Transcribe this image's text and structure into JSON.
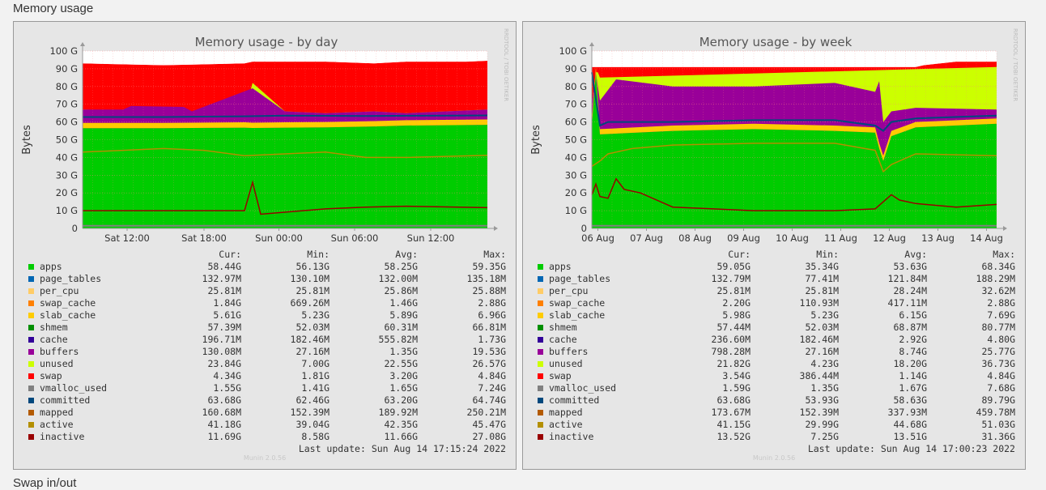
{
  "page": {
    "section_title": "Memory usage",
    "next_section_title": "Swap in/out"
  },
  "colors": {
    "apps": "#00cc00",
    "page_tables": "#0066b3",
    "per_cpu": "#ffcc66",
    "swap_cache": "#ff8000",
    "slab_cache": "#ffcc00",
    "shmem": "#008f00",
    "cache": "#330099",
    "buffers": "#990099",
    "unused": "#ccff00",
    "swap": "#ff0000",
    "vmalloc_used": "#808080",
    "committed": "#00487d",
    "mapped": "#b35a00",
    "active": "#b38f00",
    "inactive": "#990000"
  },
  "legend_header": {
    "cur": "Cur:",
    "min": "Min:",
    "avg": "Avg:",
    "max": "Max:"
  },
  "graphs": [
    {
      "title": "Memory usage - by day",
      "side_label": "RRDTOOL / TOBI OETIKER",
      "footer": "Munin 2.0.56",
      "last_update": "Last update: Sun Aug 14 17:15:24 2022",
      "chart_data": {
        "type": "area",
        "ylabel": "Bytes",
        "y_ticks": [
          "0",
          "10 G",
          "20 G",
          "30 G",
          "40 G",
          "50 G",
          "60 G",
          "70 G",
          "80 G",
          "90 G",
          "100 G"
        ],
        "ylim": [
          0,
          100
        ],
        "x_ticks": [
          "Sat 12:00",
          "Sat 18:00",
          "Sun 00:00",
          "Sun 06:00",
          "Sun 12:00"
        ],
        "x_tick_pos": [
          0.11,
          0.3,
          0.485,
          0.672,
          0.86
        ],
        "series": {
          "apps": {
            "x": [
              0,
              0.2,
              0.4,
              0.42,
              0.5,
              0.6,
              0.72,
              0.8,
              1
            ],
            "y": [
              56.5,
              56.5,
              56.8,
              56.6,
              56.8,
              57,
              57.5,
              58,
              58.4
            ]
          },
          "unused": {
            "x": [
              0,
              0.2,
              0.4,
              0.42,
              0.5,
              0.6,
              0.72,
              0.8,
              1
            ],
            "y": [
              67,
              66,
              66,
              82,
              66,
              65,
              66,
              65,
              67
            ]
          },
          "buffers": {
            "x": [
              0,
              0.1,
              0.12,
              0.25,
              0.27,
              0.42,
              0.5,
              0.6,
              0.72,
              0.8,
              1
            ],
            "y": [
              67,
              67,
              69,
              68.5,
              66,
              79,
              66,
              65,
              66,
              65,
              67
            ]
          },
          "swap": {
            "x": [
              0,
              0.2,
              0.4,
              0.42,
              0.6,
              0.72,
              0.8,
              0.95,
              1
            ],
            "y": [
              93,
              92,
              93,
              94,
              94,
              93,
              94,
              94,
              94.5
            ]
          },
          "committed": {
            "x": [
              0,
              0.2,
              0.4,
              0.5,
              0.7,
              0.9,
              1
            ],
            "y": [
              62.8,
              62.8,
              63.2,
              63.6,
              63.4,
              63.6,
              63.7
            ]
          },
          "active": {
            "x": [
              0,
              0.1,
              0.2,
              0.3,
              0.4,
              0.5,
              0.6,
              0.7,
              0.75,
              0.8,
              1
            ],
            "y": [
              43,
              44,
              45,
              44,
              41,
              42,
              43,
              40,
              40,
              40,
              41.2
            ]
          },
          "inactive": {
            "x": [
              0,
              0.2,
              0.4,
              0.42,
              0.44,
              0.6,
              0.7,
              0.8,
              1
            ],
            "y": [
              10,
              10,
              10,
              26,
              8,
              11,
              12,
              12.5,
              11.7
            ]
          }
        }
      },
      "legend": [
        {
          "name": "apps",
          "cur": "58.44G",
          "min": "56.13G",
          "avg": "58.25G",
          "max": "59.35G"
        },
        {
          "name": "page_tables",
          "cur": "132.97M",
          "min": "130.10M",
          "avg": "132.00M",
          "max": "135.18M"
        },
        {
          "name": "per_cpu",
          "cur": "25.81M",
          "min": "25.81M",
          "avg": "25.86M",
          "max": "25.88M"
        },
        {
          "name": "swap_cache",
          "cur": "1.84G",
          "min": "669.26M",
          "avg": "1.46G",
          "max": "2.88G"
        },
        {
          "name": "slab_cache",
          "cur": "5.61G",
          "min": "5.23G",
          "avg": "5.89G",
          "max": "6.96G"
        },
        {
          "name": "shmem",
          "cur": "57.39M",
          "min": "52.03M",
          "avg": "60.31M",
          "max": "66.81M"
        },
        {
          "name": "cache",
          "cur": "196.71M",
          "min": "182.46M",
          "avg": "555.82M",
          "max": "1.73G"
        },
        {
          "name": "buffers",
          "cur": "130.08M",
          "min": "27.16M",
          "avg": "1.35G",
          "max": "19.53G"
        },
        {
          "name": "unused",
          "cur": "23.84G",
          "min": "7.00G",
          "avg": "22.55G",
          "max": "26.57G"
        },
        {
          "name": "swap",
          "cur": "4.34G",
          "min": "1.81G",
          "avg": "3.20G",
          "max": "4.84G"
        },
        {
          "name": "vmalloc_used",
          "cur": "1.55G",
          "min": "1.41G",
          "avg": "1.65G",
          "max": "7.24G"
        },
        {
          "name": "committed",
          "cur": "63.68G",
          "min": "62.46G",
          "avg": "63.20G",
          "max": "64.74G"
        },
        {
          "name": "mapped",
          "cur": "160.68M",
          "min": "152.39M",
          "avg": "189.92M",
          "max": "250.21M"
        },
        {
          "name": "active",
          "cur": "41.18G",
          "min": "39.04G",
          "avg": "42.35G",
          "max": "45.47G"
        },
        {
          "name": "inactive",
          "cur": "11.69G",
          "min": "8.58G",
          "avg": "11.66G",
          "max": "27.08G"
        }
      ]
    },
    {
      "title": "Memory usage - by week",
      "side_label": "RRDTOOL / TOBI OETIKER",
      "footer": "Munin 2.0.56",
      "last_update": "Last update: Sun Aug 14 17:00:23 2022",
      "chart_data": {
        "type": "area",
        "ylabel": "Bytes",
        "y_ticks": [
          "0",
          "10 G",
          "20 G",
          "30 G",
          "40 G",
          "50 G",
          "60 G",
          "70 G",
          "80 G",
          "90 G",
          "100 G"
        ],
        "ylim": [
          0,
          100
        ],
        "x_ticks": [
          "06 Aug",
          "07 Aug",
          "08 Aug",
          "09 Aug",
          "10 Aug",
          "11 Aug",
          "12 Aug",
          "13 Aug",
          "14 Aug"
        ],
        "x_tick_pos": [
          0.015,
          0.135,
          0.255,
          0.375,
          0.495,
          0.615,
          0.735,
          0.855,
          0.975
        ],
        "series": {
          "apps": {
            "x": [
              0,
              0.01,
              0.02,
              0.2,
              0.4,
              0.6,
              0.7,
              0.71,
              0.72,
              0.74,
              0.8,
              1
            ],
            "y": [
              58,
              88,
              53,
              55,
              56,
              55,
              54,
              45,
              38,
              52,
              57,
              59
            ]
          },
          "unused": {
            "x": [
              0,
              0.01,
              0.015,
              0.02,
              1
            ],
            "y": [
              70,
              88,
              88,
              85,
              91
            ]
          },
          "buffers": {
            "x": [
              0,
              0.01,
              0.02,
              0.06,
              0.2,
              0.4,
              0.6,
              0.7,
              0.71,
              0.72,
              0.74,
              0.8,
              1
            ],
            "y": [
              70,
              88,
              72,
              84,
              80,
              80,
              82,
              77,
              83,
              60,
              66,
              68,
              67
            ]
          },
          "swap": {
            "x": [
              0,
              0.2,
              0.4,
              0.6,
              0.8,
              0.82,
              0.9,
              1
            ],
            "y": [
              91,
              91,
              91,
              91,
              91,
              92,
              94,
              94
            ]
          },
          "committed": {
            "x": [
              0,
              0.02,
              0.04,
              0.2,
              0.4,
              0.6,
              0.7,
              0.72,
              0.74,
              0.8,
              1
            ],
            "y": [
              88,
              58,
              60,
              60,
              61,
              61,
              58,
              55,
              60,
              62,
              63.6
            ]
          },
          "active": {
            "x": [
              0,
              0.02,
              0.04,
              0.1,
              0.2,
              0.4,
              0.6,
              0.7,
              0.72,
              0.74,
              0.8,
              1
            ],
            "y": [
              35,
              38,
              42,
              45,
              47,
              48,
              48,
              44,
              32,
              36,
              42,
              41
            ]
          },
          "inactive": {
            "x": [
              0,
              0.01,
              0.02,
              0.04,
              0.06,
              0.08,
              0.12,
              0.2,
              0.4,
              0.6,
              0.7,
              0.74,
              0.76,
              0.8,
              0.9,
              1
            ],
            "y": [
              19,
              25,
              18,
              17,
              28,
              22,
              20,
              12,
              10,
              10,
              11,
              19,
              16,
              14,
              12,
              13.5
            ]
          }
        }
      },
      "legend": [
        {
          "name": "apps",
          "cur": "59.05G",
          "min": "35.34G",
          "avg": "53.63G",
          "max": "68.34G"
        },
        {
          "name": "page_tables",
          "cur": "132.79M",
          "min": "77.41M",
          "avg": "121.84M",
          "max": "188.29M"
        },
        {
          "name": "per_cpu",
          "cur": "25.81M",
          "min": "25.81M",
          "avg": "28.24M",
          "max": "32.62M"
        },
        {
          "name": "swap_cache",
          "cur": "2.20G",
          "min": "110.93M",
          "avg": "417.11M",
          "max": "2.88G"
        },
        {
          "name": "slab_cache",
          "cur": "5.98G",
          "min": "5.23G",
          "avg": "6.15G",
          "max": "7.69G"
        },
        {
          "name": "shmem",
          "cur": "57.44M",
          "min": "52.03M",
          "avg": "68.87M",
          "max": "80.77M"
        },
        {
          "name": "cache",
          "cur": "236.60M",
          "min": "182.46M",
          "avg": "2.92G",
          "max": "4.80G"
        },
        {
          "name": "buffers",
          "cur": "798.28M",
          "min": "27.16M",
          "avg": "8.74G",
          "max": "25.77G"
        },
        {
          "name": "unused",
          "cur": "21.82G",
          "min": "4.23G",
          "avg": "18.20G",
          "max": "36.73G"
        },
        {
          "name": "swap",
          "cur": "3.54G",
          "min": "386.44M",
          "avg": "1.14G",
          "max": "4.84G"
        },
        {
          "name": "vmalloc_used",
          "cur": "1.59G",
          "min": "1.35G",
          "avg": "1.67G",
          "max": "7.68G"
        },
        {
          "name": "committed",
          "cur": "63.68G",
          "min": "53.93G",
          "avg": "58.63G",
          "max": "89.79G"
        },
        {
          "name": "mapped",
          "cur": "173.67M",
          "min": "152.39M",
          "avg": "337.93M",
          "max": "459.78M"
        },
        {
          "name": "active",
          "cur": "41.15G",
          "min": "29.99G",
          "avg": "44.68G",
          "max": "51.03G"
        },
        {
          "name": "inactive",
          "cur": "13.52G",
          "min": "7.25G",
          "avg": "13.51G",
          "max": "31.36G"
        }
      ]
    }
  ]
}
